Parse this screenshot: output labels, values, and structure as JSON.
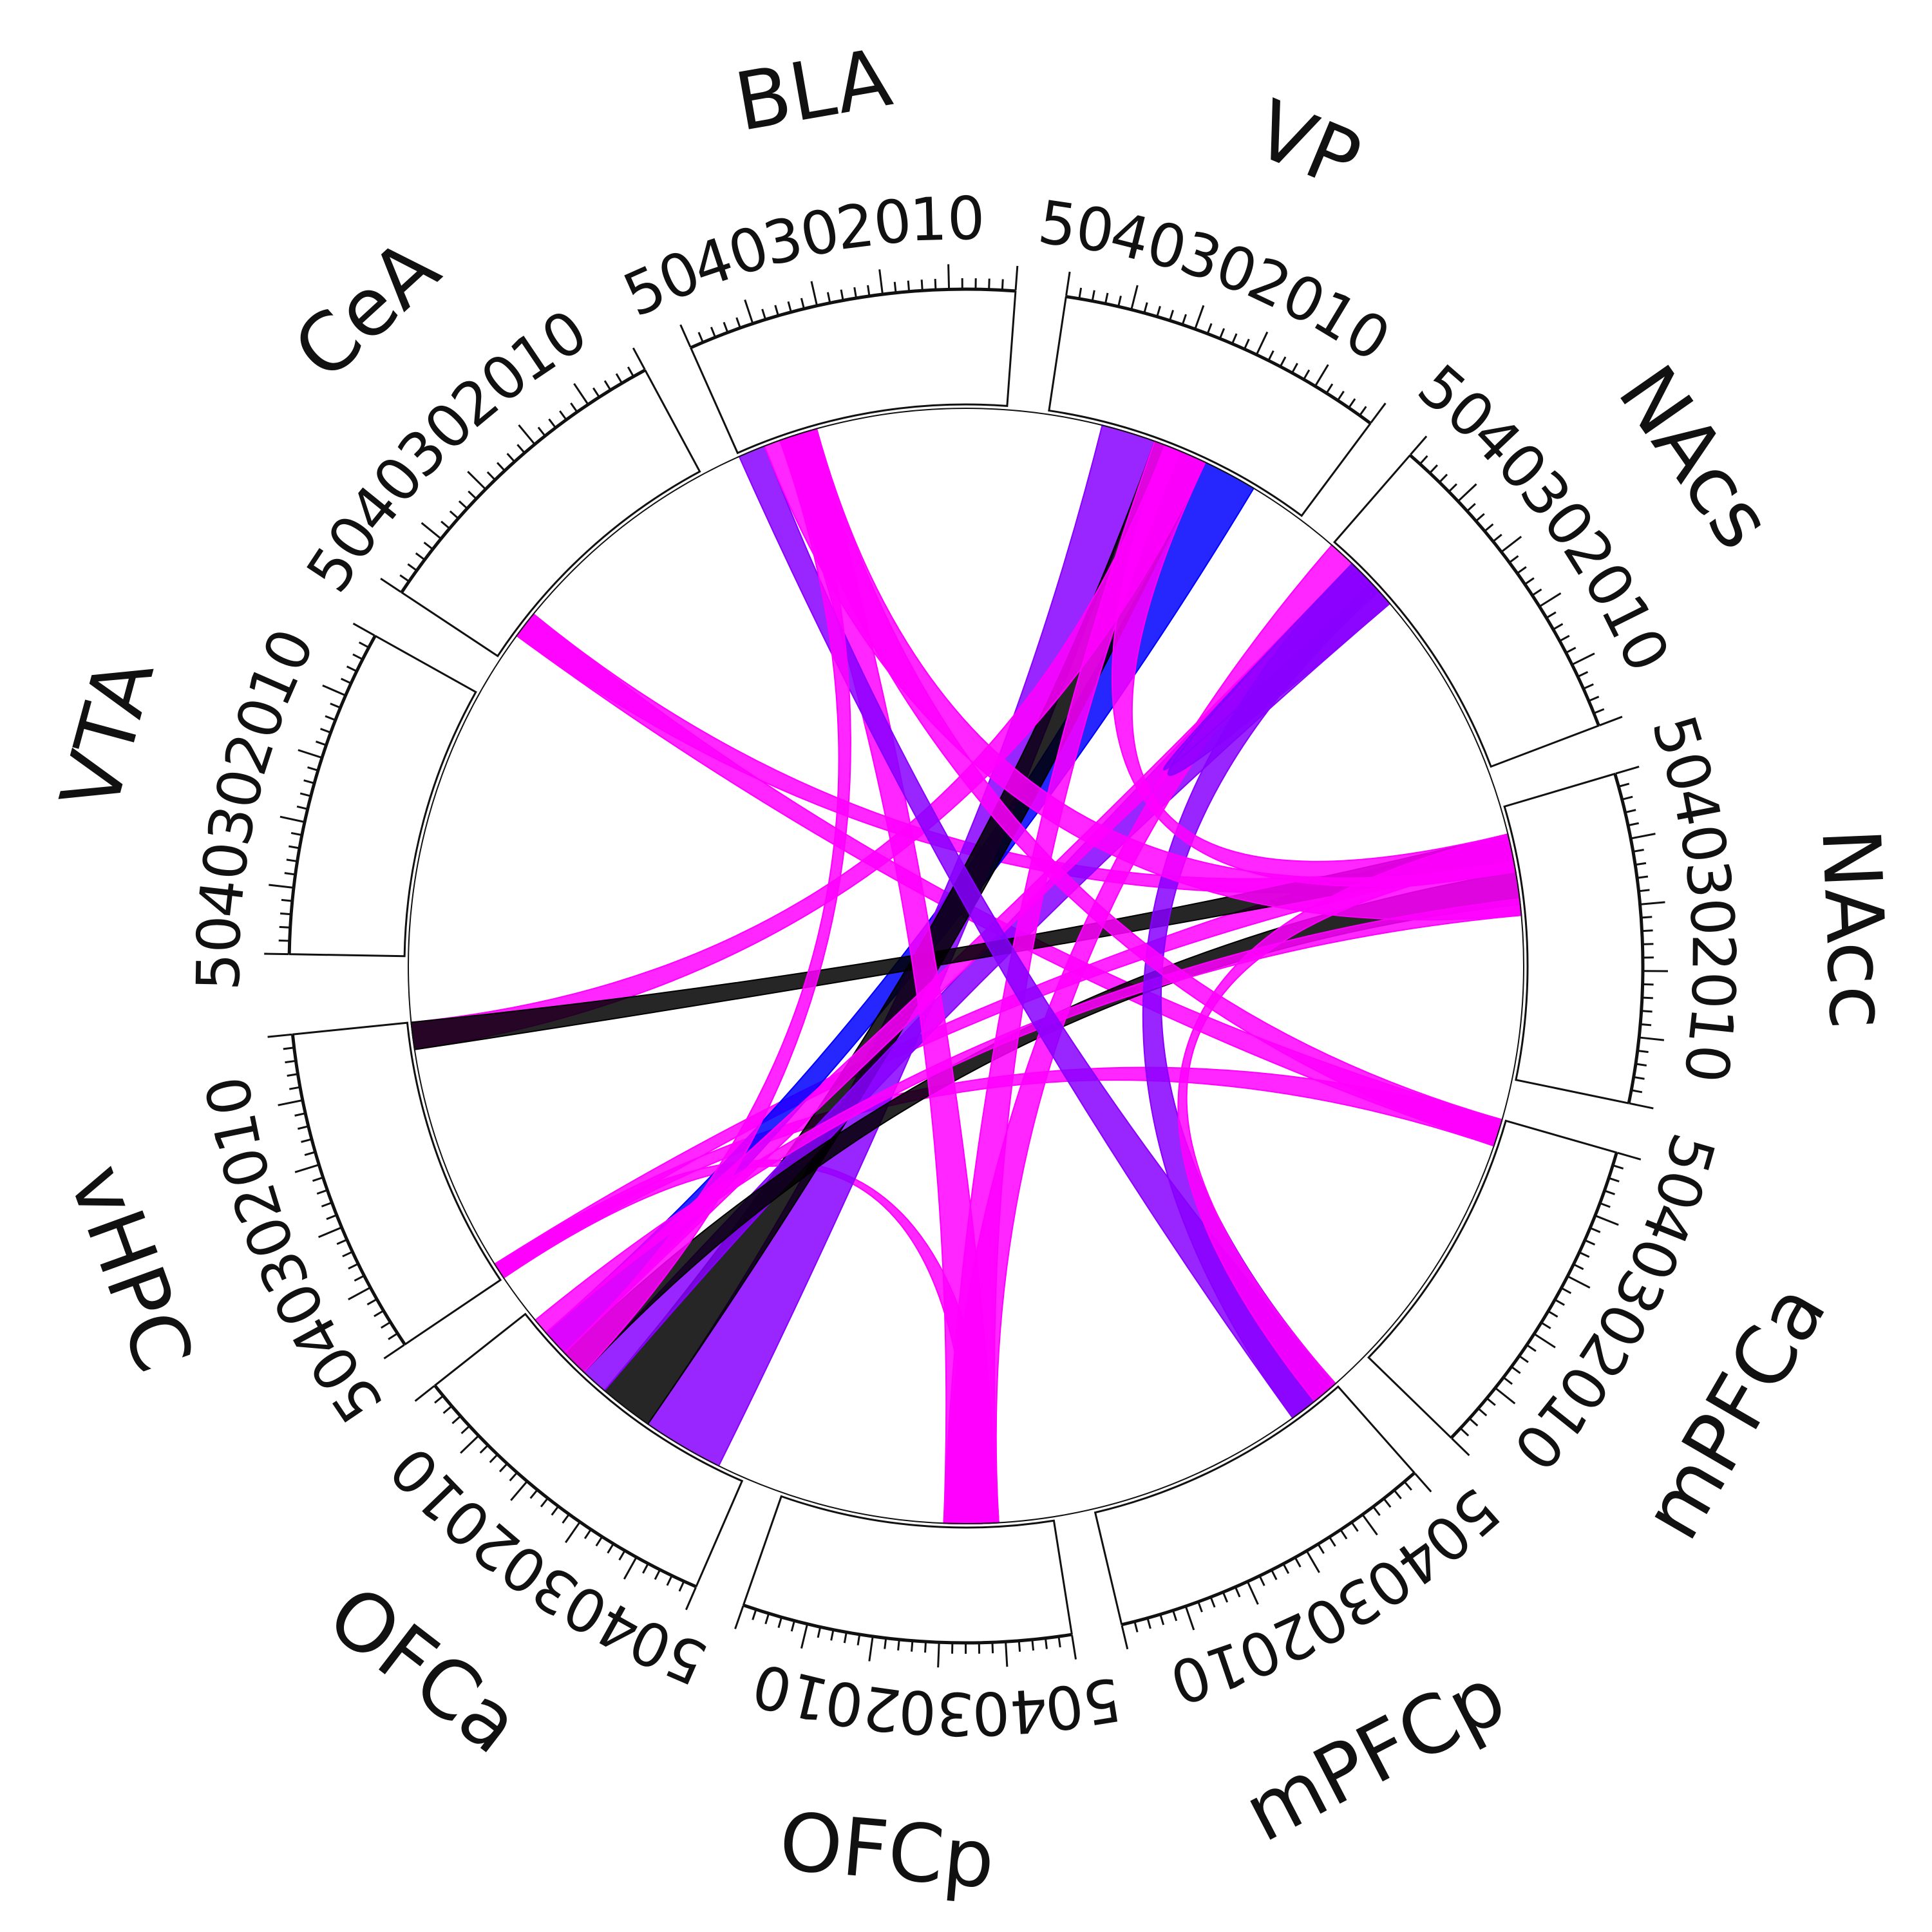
{
  "chart_data": {
    "type": "chord",
    "title": "",
    "regions": [
      "VTA",
      "CeA",
      "BLA",
      "VP",
      "NAcs",
      "NAcc",
      "mPFCa",
      "mPFCp",
      "OFCp",
      "OFCa",
      "vHPC"
    ],
    "region_range": [
      0,
      50
    ],
    "ticks": [
      10,
      20,
      30,
      40,
      50
    ],
    "colors": {
      "low": "#0000ff",
      "mid": "#8800ff",
      "high": "#ff00ff",
      "strong": "#000000"
    },
    "links": [
      {
        "from": "vHPC",
        "from_range": [
          47,
          50
        ],
        "to": "NAcc",
        "to_range": [
          40,
          45
        ],
        "color": "#ff00ff"
      },
      {
        "from": "vHPC",
        "from_range": [
          47,
          50
        ],
        "to": "OFCp",
        "to_range": [
          35,
          40
        ],
        "color": "#ff00ff"
      },
      {
        "from": "vHPC",
        "from_range": [
          47,
          50
        ],
        "to": "mPFCa",
        "to_range": [
          45,
          50
        ],
        "color": "#ff00ff"
      },
      {
        "from": "CeA",
        "from_range": [
          40,
          45
        ],
        "to": "mPFCa",
        "to_range": [
          45,
          50
        ],
        "color": "#ff00ff"
      },
      {
        "from": "CeA",
        "from_range": [
          40,
          45
        ],
        "to": "NAcc",
        "to_range": [
          38,
          42
        ],
        "color": "#ff00ff"
      },
      {
        "from": "OFCa",
        "from_range": [
          5,
          10
        ],
        "to": "VP",
        "to_range": [
          10,
          20
        ],
        "color": "#0000ff"
      },
      {
        "from": "OFCa",
        "from_range": [
          30,
          45
        ],
        "to": "VP",
        "to_range": [
          30,
          40
        ],
        "color": "#8800ff"
      },
      {
        "from": "OFCa",
        "from_range": [
          20,
          30
        ],
        "to": "VP",
        "to_range": [
          20,
          30
        ],
        "color": "#000000"
      },
      {
        "from": "OFCa",
        "from_range": [
          15,
          20
        ],
        "to": "NAcs",
        "to_range": [
          35,
          45
        ],
        "color": "#8800ff"
      },
      {
        "from": "OFCa",
        "from_range": [
          10,
          15
        ],
        "to": "NAcc",
        "to_range": [
          32,
          38
        ],
        "color": "#000000"
      },
      {
        "from": "OFCa",
        "from_range": [
          5,
          10
        ],
        "to": "NAcs",
        "to_range": [
          40,
          45
        ],
        "color": "#ff00ff"
      },
      {
        "from": "OFCa",
        "from_range": [
          2,
          5
        ],
        "to": "NAcc",
        "to_range": [
          30,
          33
        ],
        "color": "#ff00ff"
      },
      {
        "from": "vHPC",
        "from_range": [
          0,
          5
        ],
        "to": "VP",
        "to_range": [
          20,
          28
        ],
        "color": "#ff00ff"
      },
      {
        "from": "vHPC",
        "from_range": [
          0,
          5
        ],
        "to": "NAcc",
        "to_range": [
          40,
          45
        ],
        "color": "#000000"
      },
      {
        "from": "OFCp",
        "from_range": [
          30,
          40
        ],
        "to": "BLA",
        "to_range": [
          35,
          42
        ],
        "color": "#ff00ff"
      },
      {
        "from": "OFCp",
        "from_range": [
          30,
          40
        ],
        "to": "VP",
        "to_range": [
          25,
          30
        ],
        "color": "#ff00ff"
      },
      {
        "from": "OFCp",
        "from_range": [
          30,
          40
        ],
        "to": "NAcs",
        "to_range": [
          45,
          50
        ],
        "color": "#ff00ff"
      },
      {
        "from": "mPFCp",
        "from_range": [
          40,
          50
        ],
        "to": "NAcs",
        "to_range": [
          38,
          45
        ],
        "color": "#8800ff"
      },
      {
        "from": "mPFCp",
        "from_range": [
          40,
          50
        ],
        "to": "BLA",
        "to_range": [
          45,
          50
        ],
        "color": "#8800ff"
      },
      {
        "from": "mPFCa",
        "from_range": [
          45,
          50
        ],
        "to": "BLA",
        "to_range": [
          35,
          42
        ],
        "color": "#ff00ff"
      },
      {
        "from": "NAcs",
        "from_range": [
          35,
          45
        ],
        "to": "NAcs",
        "to_range": [
          40,
          45
        ],
        "color": "#8800ff"
      },
      {
        "from": "NAcc",
        "from_range": [
          30,
          40
        ],
        "to": "BLA",
        "to_range": [
          35,
          45
        ],
        "color": "#ff00ff"
      },
      {
        "from": "NAcc",
        "from_range": [
          38,
          45
        ],
        "to": "VP",
        "to_range": [
          20,
          28
        ],
        "color": "#ff00ff"
      },
      {
        "from": "NAcc",
        "from_range": [
          40,
          45
        ],
        "to": "mPFCp",
        "to_range": [
          45,
          50
        ],
        "color": "#ff00ff"
      },
      {
        "from": "OFCa",
        "from_range": [
          10,
          15
        ],
        "to": "BLA",
        "to_range": [
          38,
          42
        ],
        "color": "#ff00ff"
      }
    ]
  }
}
